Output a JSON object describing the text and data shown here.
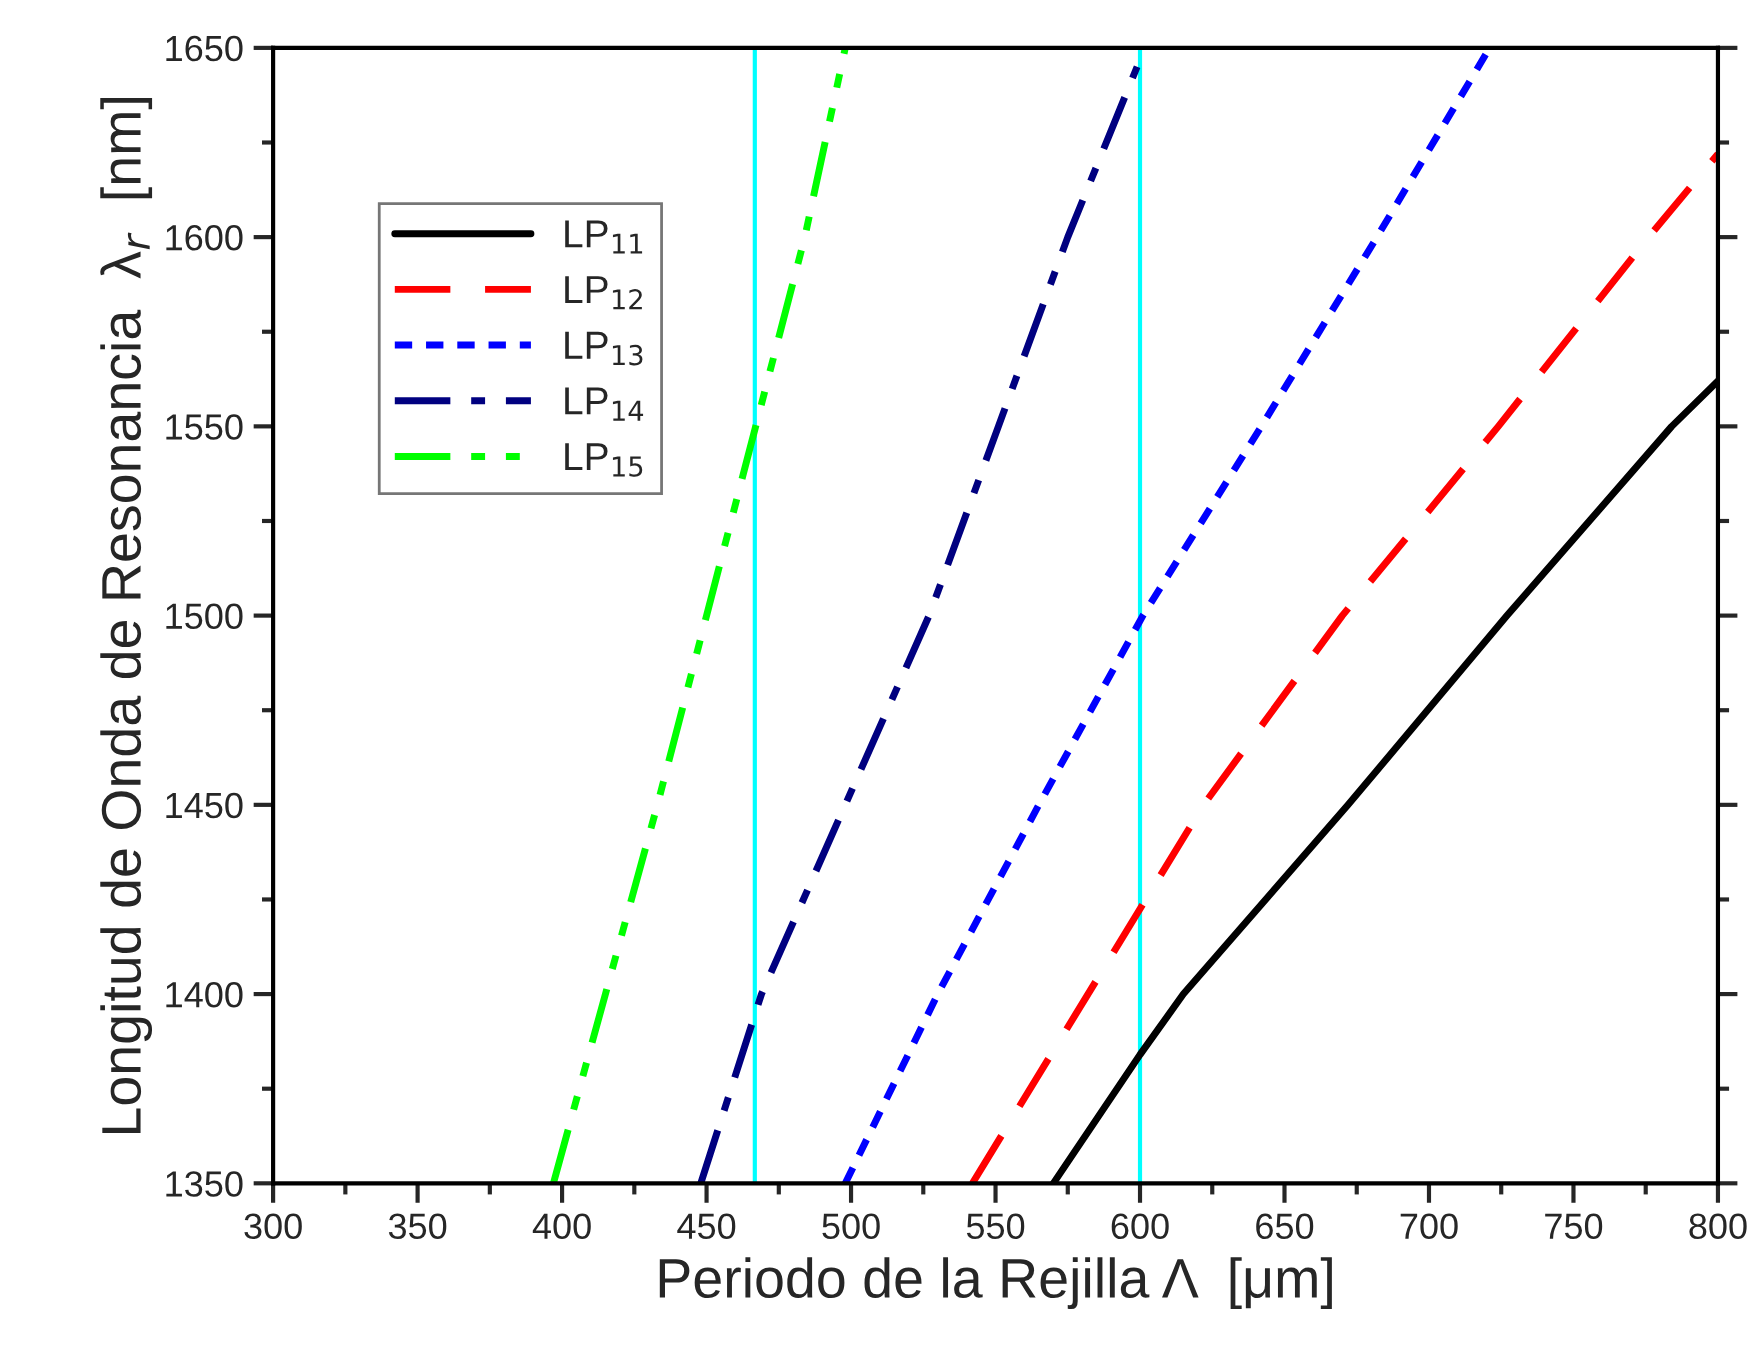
{
  "chart_data": {
    "type": "line",
    "xlabel": "Periodo de la Rejilla Λ  [μm]",
    "ylabel": "Longitud de Onda de Resonancia  λ$_{r}$  [nm]",
    "xlim": [
      300,
      800
    ],
    "xticks": [
      300,
      350,
      400,
      450,
      500,
      550,
      600,
      650,
      700,
      750,
      800
    ],
    "ylim": [
      1350,
      1650
    ],
    "yticks": [
      1350,
      1400,
      1450,
      1500,
      1550,
      1600,
      1650
    ],
    "grid": false,
    "legend": "top left",
    "marker": "none",
    "series": [
      {
        "name": "LP$_{11}$",
        "color": "#000000",
        "line_style": "solid",
        "x": [
          570,
          600,
          615,
          672,
          727,
          784,
          800
        ],
        "values": [
          1350,
          1384,
          1400,
          1450,
          1500,
          1550,
          1562
        ]
      },
      {
        "name": "LP$_{12}$",
        "color": "#ff0000",
        "line_style": "dashed",
        "x": [
          542,
          582,
          622,
          670,
          724,
          776,
          800
        ],
        "values": [
          1350,
          1400,
          1450,
          1500,
          1550,
          1600,
          1622
        ]
      },
      {
        "name": "LP$_{13}$",
        "color": "#0000ff",
        "line_style": "dotted",
        "x": [
          498,
          530,
          565,
          601,
          642,
          682,
          721
        ],
        "values": [
          1350,
          1400,
          1450,
          1500,
          1550,
          1600,
          1650
        ]
      },
      {
        "name": "LP$_{14}$",
        "color": "#000080",
        "line_style": "dashdot",
        "x": [
          448,
          469,
          498,
          527,
          551,
          575,
          599
        ],
        "values": [
          1350,
          1400,
          1450,
          1500,
          1550,
          1600,
          1645
        ]
      },
      {
        "name": "LP$_{15}$",
        "color": "#00ff00",
        "line_style": "dashdotdot",
        "x": [
          397,
          415,
          433,
          450,
          467,
          484,
          498
        ],
        "values": [
          1350,
          1400,
          1450,
          1500,
          1550,
          1600,
          1650
        ]
      }
    ],
    "ref_lines": [
      {
        "axis": "x",
        "value": 466.7,
        "color": "#00ffff"
      },
      {
        "axis": "x",
        "value": 600,
        "color": "#00ffff"
      }
    ]
  }
}
